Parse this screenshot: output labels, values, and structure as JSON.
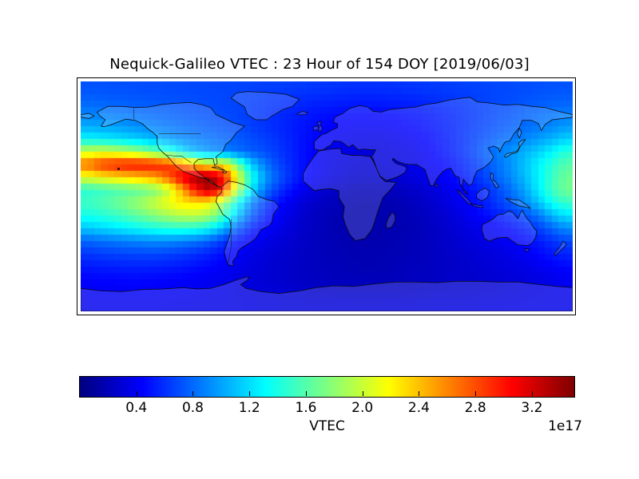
{
  "figure": {
    "title": "Nequick-Galileo VTEC : 23 Hour of 154 DOY [2019/06/03]"
  },
  "chart_data": {
    "type": "heatmap",
    "title": "Nequick-Galileo VTEC : 23 Hour of 154 DOY [2019/06/03]",
    "model": "Nequick-Galileo",
    "hour": 23,
    "doy": 154,
    "date": "2019/06/03",
    "projection": "equirectangular-world-map",
    "x_range": [
      -180,
      180
    ],
    "y_range": [
      -90,
      90
    ],
    "colormap": "jet",
    "grid_lines": false,
    "colorbar": {
      "orientation": "horizontal",
      "label": "VTEC",
      "offset_label": "1e17",
      "vmin": 0,
      "vmax": 3.5,
      "ticks": [
        0.4,
        0.8,
        1.2,
        1.6,
        2.0,
        2.4,
        2.8,
        3.2
      ],
      "tick_labels": [
        "0.4",
        "0.8",
        "1.2",
        "1.6",
        "2.0",
        "2.4",
        "2.8",
        "3.2"
      ]
    },
    "marker": {
      "lon": -152.5,
      "lat": 22
    },
    "grid": {
      "units": "1e17 el/m^2",
      "nrows": 18,
      "ncols": 36,
      "lat_top": 90,
      "lat_step": -10,
      "lon_left": -180,
      "lon_step": 10,
      "values": [
        [
          0.72,
          0.72,
          0.71,
          0.71,
          0.7,
          0.7,
          0.69,
          0.69,
          0.68,
          0.68,
          0.67,
          0.67,
          0.66,
          0.65,
          0.65,
          0.64,
          0.63,
          0.62,
          0.61,
          0.6,
          0.6,
          0.6,
          0.6,
          0.61,
          0.62,
          0.63,
          0.64,
          0.65,
          0.66,
          0.67,
          0.68,
          0.69,
          0.7,
          0.71,
          0.72,
          0.72
        ],
        [
          0.78,
          0.77,
          0.76,
          0.75,
          0.74,
          0.73,
          0.72,
          0.71,
          0.7,
          0.69,
          0.68,
          0.67,
          0.65,
          0.63,
          0.61,
          0.59,
          0.57,
          0.56,
          0.55,
          0.54,
          0.53,
          0.53,
          0.54,
          0.55,
          0.56,
          0.58,
          0.6,
          0.62,
          0.64,
          0.66,
          0.68,
          0.7,
          0.72,
          0.74,
          0.76,
          0.77
        ],
        [
          0.88,
          0.87,
          0.85,
          0.83,
          0.81,
          0.79,
          0.77,
          0.75,
          0.73,
          0.71,
          0.69,
          0.67,
          0.64,
          0.61,
          0.58,
          0.55,
          0.52,
          0.5,
          0.48,
          0.47,
          0.46,
          0.46,
          0.47,
          0.48,
          0.5,
          0.52,
          0.55,
          0.58,
          0.62,
          0.66,
          0.7,
          0.73,
          0.77,
          0.8,
          0.83,
          0.86
        ],
        [
          1.02,
          1.0,
          0.98,
          0.95,
          0.91,
          0.87,
          0.84,
          0.81,
          0.78,
          0.75,
          0.72,
          0.69,
          0.65,
          0.61,
          0.57,
          0.53,
          0.49,
          0.46,
          0.43,
          0.42,
          0.41,
          0.41,
          0.42,
          0.44,
          0.46,
          0.49,
          0.53,
          0.57,
          0.62,
          0.67,
          0.72,
          0.76,
          0.8,
          0.85,
          0.9,
          0.96
        ],
        [
          1.3,
          1.27,
          1.23,
          1.18,
          1.12,
          1.05,
          0.98,
          0.92,
          0.87,
          0.83,
          0.79,
          0.75,
          0.7,
          0.65,
          0.6,
          0.54,
          0.48,
          0.44,
          0.4,
          0.38,
          0.36,
          0.36,
          0.37,
          0.39,
          0.42,
          0.46,
          0.51,
          0.57,
          0.64,
          0.71,
          0.78,
          0.84,
          0.9,
          0.97,
          1.05,
          1.15
        ],
        [
          2.0,
          2.05,
          2.0,
          1.92,
          1.8,
          1.65,
          1.45,
          1.22,
          1.05,
          0.95,
          0.88,
          0.82,
          0.76,
          0.7,
          0.63,
          0.55,
          0.47,
          0.41,
          0.37,
          0.34,
          0.32,
          0.32,
          0.33,
          0.35,
          0.38,
          0.43,
          0.49,
          0.56,
          0.65,
          0.76,
          0.86,
          0.95,
          1.05,
          1.15,
          1.28,
          1.45
        ],
        [
          2.7,
          2.9,
          3.0,
          3.05,
          3.05,
          3.0,
          2.9,
          2.65,
          2.35,
          2.15,
          2.25,
          1.7,
          1.15,
          0.85,
          0.68,
          0.56,
          0.47,
          0.4,
          0.35,
          0.32,
          0.3,
          0.3,
          0.31,
          0.33,
          0.36,
          0.4,
          0.45,
          0.52,
          0.6,
          0.7,
          0.82,
          0.95,
          1.1,
          1.28,
          1.45,
          1.6
        ],
        [
          2.1,
          2.2,
          2.28,
          2.35,
          2.42,
          2.52,
          2.78,
          3.15,
          3.4,
          3.45,
          3.05,
          2.15,
          1.4,
          0.98,
          0.74,
          0.58,
          0.47,
          0.39,
          0.33,
          0.29,
          0.27,
          0.27,
          0.28,
          0.3,
          0.33,
          0.37,
          0.42,
          0.48,
          0.56,
          0.66,
          0.78,
          0.92,
          1.08,
          1.28,
          1.5,
          1.68
        ],
        [
          1.45,
          1.5,
          1.55,
          1.6,
          1.65,
          1.75,
          2.0,
          2.5,
          3.05,
          3.35,
          2.85,
          1.95,
          1.25,
          0.85,
          0.62,
          0.47,
          0.37,
          0.3,
          0.25,
          0.22,
          0.2,
          0.2,
          0.21,
          0.23,
          0.26,
          0.3,
          0.35,
          0.41,
          0.48,
          0.57,
          0.68,
          0.82,
          1.0,
          1.25,
          1.52,
          1.7
        ],
        [
          1.52,
          1.58,
          1.66,
          1.76,
          1.88,
          2.02,
          2.16,
          2.26,
          2.28,
          2.18,
          1.8,
          1.35,
          0.92,
          0.65,
          0.48,
          0.37,
          0.29,
          0.24,
          0.2,
          0.17,
          0.16,
          0.16,
          0.17,
          0.19,
          0.22,
          0.26,
          0.31,
          0.37,
          0.44,
          0.53,
          0.63,
          0.75,
          0.9,
          1.1,
          1.35,
          1.5
        ],
        [
          1.38,
          1.43,
          1.5,
          1.58,
          1.68,
          1.78,
          1.88,
          1.95,
          1.97,
          1.87,
          1.55,
          1.12,
          0.78,
          0.55,
          0.42,
          0.33,
          0.26,
          0.21,
          0.18,
          0.16,
          0.15,
          0.15,
          0.16,
          0.18,
          0.2,
          0.24,
          0.28,
          0.33,
          0.39,
          0.46,
          0.53,
          0.6,
          0.7,
          0.84,
          1.05,
          1.22
        ],
        [
          1.12,
          1.17,
          1.22,
          1.28,
          1.34,
          1.4,
          1.44,
          1.45,
          1.42,
          1.3,
          1.06,
          0.78,
          0.56,
          0.44,
          0.36,
          0.3,
          0.25,
          0.21,
          0.18,
          0.16,
          0.15,
          0.15,
          0.16,
          0.17,
          0.19,
          0.22,
          0.26,
          0.3,
          0.34,
          0.38,
          0.43,
          0.48,
          0.55,
          0.65,
          0.78,
          0.92
        ],
        [
          0.78,
          0.82,
          0.85,
          0.88,
          0.9,
          0.92,
          0.91,
          0.88,
          0.83,
          0.75,
          0.62,
          0.5,
          0.41,
          0.35,
          0.31,
          0.28,
          0.24,
          0.21,
          0.19,
          0.17,
          0.16,
          0.16,
          0.17,
          0.18,
          0.2,
          0.22,
          0.25,
          0.28,
          0.31,
          0.34,
          0.37,
          0.41,
          0.46,
          0.52,
          0.6,
          0.68
        ],
        [
          0.62,
          0.64,
          0.66,
          0.67,
          0.68,
          0.68,
          0.66,
          0.63,
          0.59,
          0.54,
          0.47,
          0.4,
          0.35,
          0.31,
          0.28,
          0.26,
          0.23,
          0.21,
          0.19,
          0.18,
          0.17,
          0.17,
          0.18,
          0.19,
          0.2,
          0.22,
          0.24,
          0.26,
          0.28,
          0.31,
          0.33,
          0.36,
          0.4,
          0.45,
          0.51,
          0.56
        ],
        [
          0.52,
          0.53,
          0.54,
          0.55,
          0.55,
          0.54,
          0.53,
          0.51,
          0.48,
          0.45,
          0.41,
          0.37,
          0.33,
          0.3,
          0.27,
          0.25,
          0.23,
          0.21,
          0.2,
          0.19,
          0.18,
          0.18,
          0.19,
          0.2,
          0.21,
          0.22,
          0.24,
          0.25,
          0.27,
          0.29,
          0.31,
          0.33,
          0.35,
          0.38,
          0.42,
          0.46
        ],
        [
          0.44,
          0.45,
          0.45,
          0.46,
          0.46,
          0.45,
          0.44,
          0.43,
          0.41,
          0.39,
          0.37,
          0.34,
          0.31,
          0.29,
          0.27,
          0.25,
          0.23,
          0.22,
          0.21,
          0.2,
          0.2,
          0.2,
          0.2,
          0.21,
          0.22,
          0.23,
          0.24,
          0.25,
          0.26,
          0.27,
          0.29,
          0.3,
          0.32,
          0.34,
          0.36,
          0.4
        ],
        [
          0.4,
          0.4,
          0.4,
          0.41,
          0.41,
          0.4,
          0.4,
          0.39,
          0.38,
          0.37,
          0.36,
          0.34,
          0.33,
          0.31,
          0.3,
          0.28,
          0.27,
          0.26,
          0.26,
          0.25,
          0.25,
          0.25,
          0.25,
          0.26,
          0.26,
          0.27,
          0.28,
          0.28,
          0.29,
          0.3,
          0.31,
          0.32,
          0.33,
          0.34,
          0.35,
          0.37
        ],
        [
          0.38,
          0.38,
          0.38,
          0.38,
          0.38,
          0.38,
          0.37,
          0.37,
          0.36,
          0.36,
          0.35,
          0.35,
          0.34,
          0.33,
          0.33,
          0.32,
          0.32,
          0.31,
          0.31,
          0.31,
          0.31,
          0.31,
          0.31,
          0.31,
          0.32,
          0.32,
          0.33,
          0.33,
          0.33,
          0.34,
          0.34,
          0.35,
          0.35,
          0.36,
          0.36,
          0.37
        ]
      ]
    }
  }
}
